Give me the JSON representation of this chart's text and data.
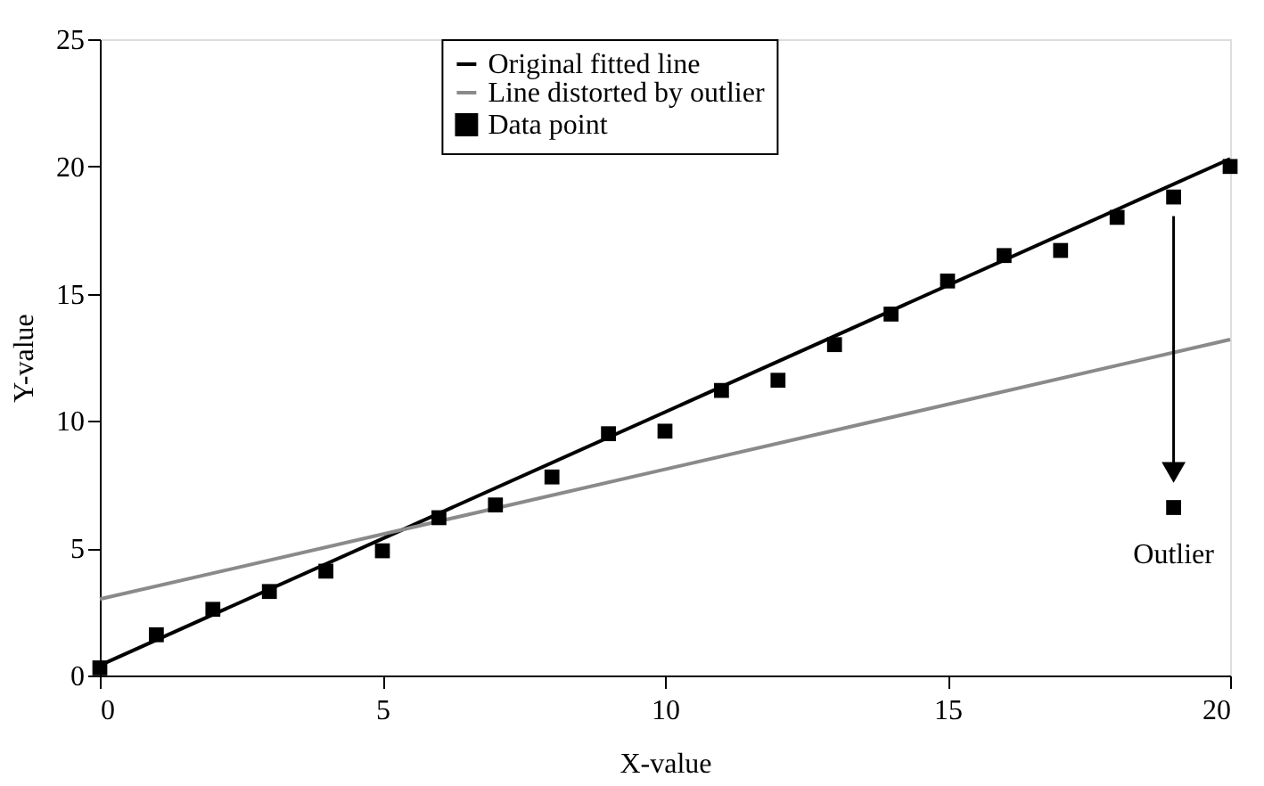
{
  "chart_data": {
    "type": "scatter",
    "xlabel": "X-value",
    "ylabel": "Y-value",
    "xlim": [
      0,
      20
    ],
    "xticks": [
      0,
      5,
      10,
      15,
      20
    ],
    "ylim": [
      0,
      25
    ],
    "yticks": [
      0,
      5,
      10,
      15,
      20,
      25
    ],
    "grid": false,
    "legend": "top",
    "series": [
      {
        "name": "Original fitted line",
        "type": "line",
        "color": "#000000",
        "x": [
          0,
          20
        ],
        "values": [
          0.4,
          20.3
        ]
      },
      {
        "name": "Line distorted by outlier",
        "type": "line",
        "color": "#8a8a8a",
        "x": [
          0,
          20
        ],
        "values": [
          3.0,
          13.2
        ]
      },
      {
        "name": "Data point",
        "marker": "square",
        "color": "#000000",
        "x": [
          0,
          1,
          2,
          3,
          4,
          5,
          6,
          7,
          8,
          9,
          10,
          11,
          12,
          13,
          14,
          15,
          16,
          17,
          18,
          19,
          20,
          19
        ],
        "values": [
          0.3,
          1.6,
          2.6,
          3.3,
          4.1,
          4.9,
          6.2,
          6.7,
          7.8,
          9.5,
          9.6,
          11.2,
          11.6,
          13.0,
          14.2,
          15.5,
          16.5,
          16.7,
          18.0,
          18.8,
          20.0,
          6.6
        ]
      }
    ],
    "annotations": [
      {
        "text": "Outlier",
        "x": 19,
        "y": 6.6
      }
    ]
  }
}
